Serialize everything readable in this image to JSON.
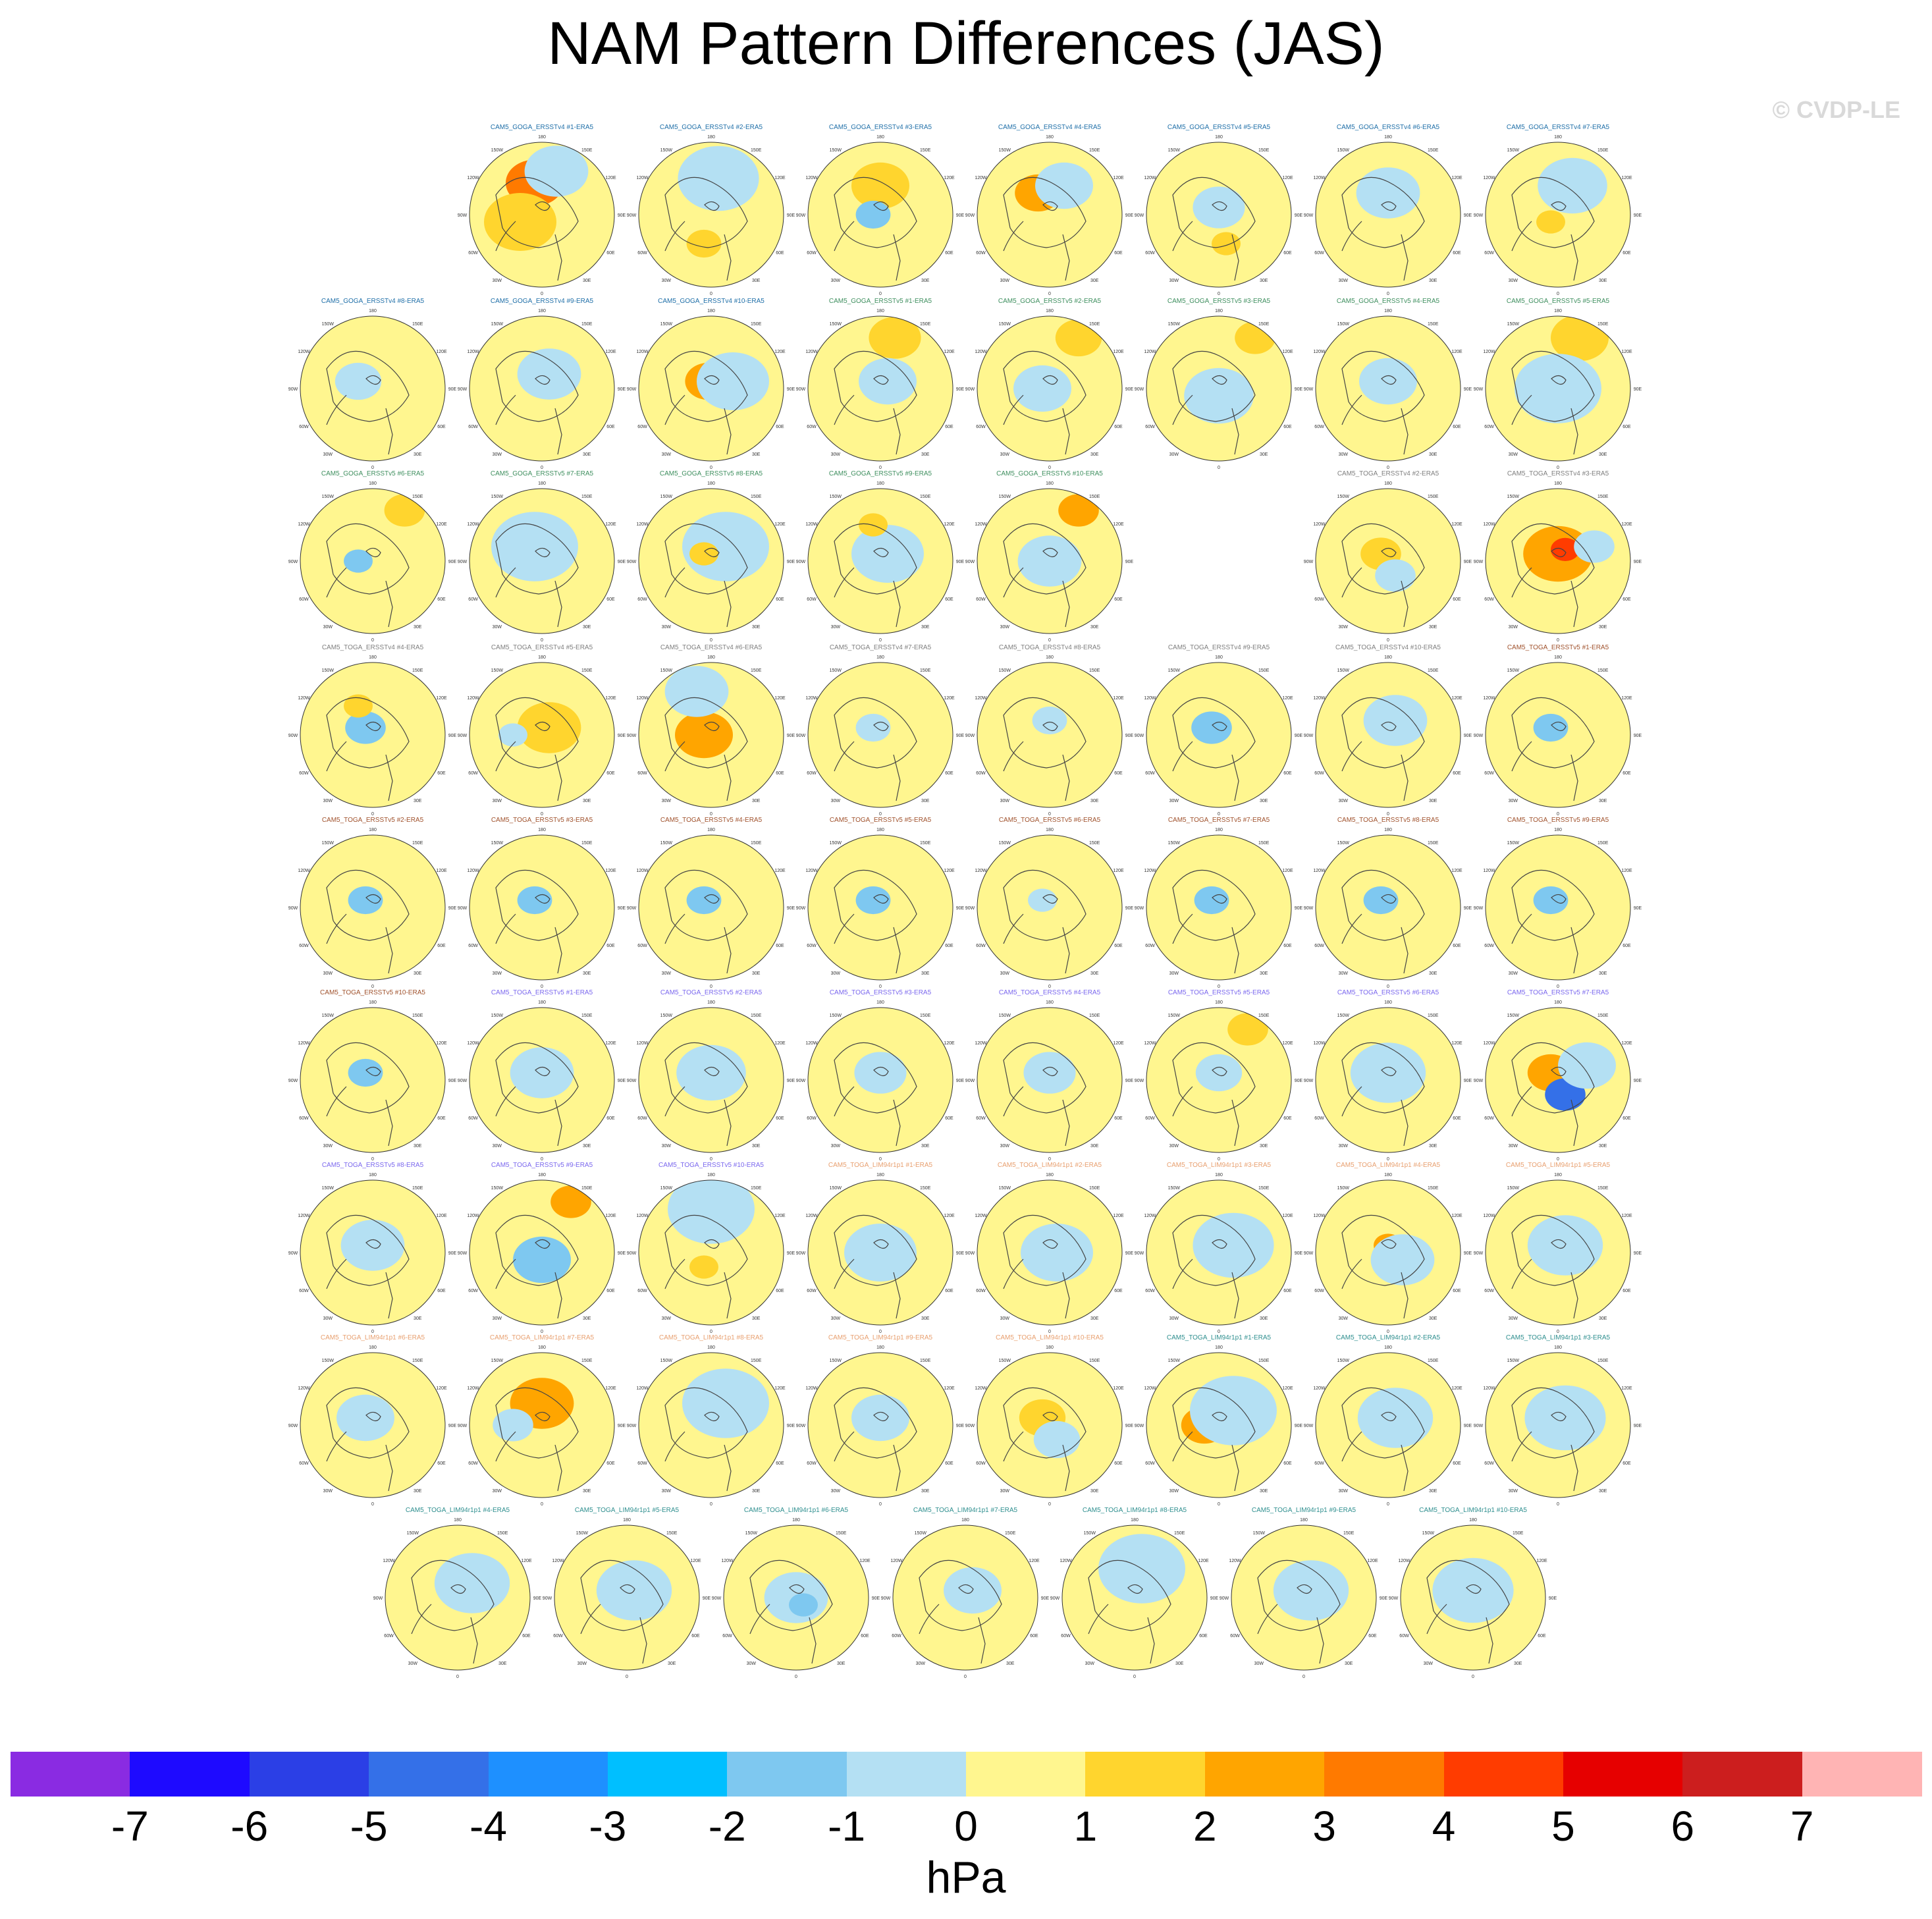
{
  "title": "NAM Pattern Differences (JAS)",
  "credit": "© CVDP-LE",
  "colorbar": {
    "units": "hPa",
    "ticks": [
      "-7",
      "-6",
      "-5",
      "-4",
      "-3",
      "-2",
      "-1",
      "0",
      "1",
      "2",
      "3",
      "4",
      "5",
      "6",
      "7"
    ],
    "colors": [
      "#8A2BE2",
      "#1E0AFF",
      "#2B3FE6",
      "#3470E8",
      "#1E90FF",
      "#00BFFF",
      "#7EC8F0",
      "#B4E0F3",
      "#FFF68F",
      "#FFD52E",
      "#FFA500",
      "#FF7A00",
      "#FF3C00",
      "#E60000",
      "#CC1E1E",
      "#FFB4B4"
    ]
  },
  "panel_template": {
    "lat_lon_labels": [
      "180",
      "150W",
      "150E",
      "120W",
      "120E",
      "90W",
      "90E",
      "60W",
      "60E",
      "30W",
      "30E",
      "0"
    ]
  },
  "panels": [
    {
      "title": "CAM5_GOGA_ERSSTv4 #1-ERA5",
      "color": "#1f6fa8",
      "blobs": [
        [
          0.45,
          0.28,
          0.2,
          "#FF7A00"
        ],
        [
          0.35,
          0.55,
          0.25,
          "#FFD52E"
        ],
        [
          0.6,
          0.2,
          0.22,
          "#B4E0F3"
        ]
      ]
    },
    {
      "title": "CAM5_GOGA_ERSSTv4 #2-ERA5",
      "color": "#1f6fa8",
      "blobs": [
        [
          0.55,
          0.25,
          0.28,
          "#B4E0F3"
        ],
        [
          0.45,
          0.7,
          0.12,
          "#FFD52E"
        ]
      ]
    },
    {
      "title": "CAM5_GOGA_ERSSTv4 #3-ERA5",
      "color": "#1f6fa8",
      "blobs": [
        [
          0.5,
          0.3,
          0.2,
          "#FFD52E"
        ],
        [
          0.45,
          0.5,
          0.12,
          "#7EC8F0"
        ]
      ]
    },
    {
      "title": "CAM5_GOGA_ERSSTv4 #4-ERA5",
      "color": "#1f6fa8",
      "blobs": [
        [
          0.42,
          0.35,
          0.16,
          "#FFA500"
        ],
        [
          0.6,
          0.3,
          0.2,
          "#B4E0F3"
        ]
      ]
    },
    {
      "title": "CAM5_GOGA_ERSSTv4 #5-ERA5",
      "color": "#1f6fa8",
      "blobs": [
        [
          0.5,
          0.45,
          0.18,
          "#B4E0F3"
        ],
        [
          0.55,
          0.7,
          0.1,
          "#FFD52E"
        ]
      ]
    },
    {
      "title": "CAM5_GOGA_ERSSTv4 #6-ERA5",
      "color": "#1f6fa8",
      "blobs": [
        [
          0.5,
          0.35,
          0.22,
          "#B4E0F3"
        ]
      ]
    },
    {
      "title": "CAM5_GOGA_ERSSTv4 #7-ERA5",
      "color": "#1f6fa8",
      "blobs": [
        [
          0.6,
          0.3,
          0.24,
          "#B4E0F3"
        ],
        [
          0.45,
          0.55,
          0.1,
          "#FFD52E"
        ]
      ]
    },
    {
      "title": "CAM5_GOGA_ERSSTv4 #8-ERA5",
      "color": "#1f6fa8",
      "blobs": [
        [
          0.4,
          0.45,
          0.16,
          "#B4E0F3"
        ]
      ]
    },
    {
      "title": "CAM5_GOGA_ERSSTv4 #9-ERA5",
      "color": "#1f6fa8",
      "blobs": [
        [
          0.55,
          0.4,
          0.22,
          "#B4E0F3"
        ]
      ]
    },
    {
      "title": "CAM5_GOGA_ERSSTv4 #10-ERA5",
      "color": "#1f6fa8",
      "blobs": [
        [
          0.48,
          0.45,
          0.16,
          "#FFA500"
        ],
        [
          0.65,
          0.45,
          0.25,
          "#B4E0F3"
        ]
      ]
    },
    {
      "title": "CAM5_GOGA_ERSSTv5 #1-ERA5",
      "color": "#3f8f5f",
      "blobs": [
        [
          0.6,
          0.15,
          0.18,
          "#FFD52E"
        ],
        [
          0.55,
          0.45,
          0.2,
          "#B4E0F3"
        ]
      ]
    },
    {
      "title": "CAM5_GOGA_ERSSTv5 #2-ERA5",
      "color": "#3f8f5f",
      "blobs": [
        [
          0.7,
          0.15,
          0.16,
          "#FFD52E"
        ],
        [
          0.45,
          0.5,
          0.2,
          "#B4E0F3"
        ]
      ]
    },
    {
      "title": "CAM5_GOGA_ERSSTv5 #3-ERA5",
      "color": "#3f8f5f",
      "blobs": [
        [
          0.75,
          0.15,
          0.14,
          "#FFD52E"
        ],
        [
          0.5,
          0.55,
          0.24,
          "#B4E0F3"
        ]
      ]
    },
    {
      "title": "CAM5_GOGA_ERSSTv5 #4-ERA5",
      "color": "#3f8f5f",
      "blobs": [
        [
          0.5,
          0.45,
          0.2,
          "#B4E0F3"
        ]
      ]
    },
    {
      "title": "CAM5_GOGA_ERSSTv5 #5-ERA5",
      "color": "#3f8f5f",
      "blobs": [
        [
          0.65,
          0.15,
          0.2,
          "#FFD52E"
        ],
        [
          0.5,
          0.5,
          0.3,
          "#B4E0F3"
        ]
      ]
    },
    {
      "title": "CAM5_GOGA_ERSSTv5 #6-ERA5",
      "color": "#3f8f5f",
      "blobs": [
        [
          0.72,
          0.15,
          0.14,
          "#FFD52E"
        ],
        [
          0.4,
          0.5,
          0.1,
          "#7EC8F0"
        ]
      ]
    },
    {
      "title": "CAM5_GOGA_ERSSTv5 #7-ERA5",
      "color": "#3f8f5f",
      "blobs": [
        [
          0.45,
          0.4,
          0.3,
          "#B4E0F3"
        ]
      ]
    },
    {
      "title": "CAM5_GOGA_ERSSTv5 #8-ERA5",
      "color": "#3f8f5f",
      "blobs": [
        [
          0.6,
          0.4,
          0.3,
          "#B4E0F3"
        ],
        [
          0.45,
          0.45,
          0.1,
          "#FFD52E"
        ]
      ]
    },
    {
      "title": "CAM5_GOGA_ERSSTv5 #9-ERA5",
      "color": "#3f8f5f",
      "blobs": [
        [
          0.55,
          0.45,
          0.25,
          "#B4E0F3"
        ],
        [
          0.45,
          0.25,
          0.1,
          "#FFD52E"
        ]
      ]
    },
    {
      "title": "CAM5_GOGA_ERSSTv5 #10-ERA5",
      "color": "#3f8f5f",
      "blobs": [
        [
          0.7,
          0.15,
          0.14,
          "#FFA500"
        ],
        [
          0.5,
          0.5,
          0.22,
          "#B4E0F3"
        ]
      ]
    },
    {
      "title": "CAM5_TOGA_ERSSTv4 #2-ERA5",
      "color": "#7f7f7f",
      "blobs": [
        [
          0.45,
          0.45,
          0.14,
          "#FFD52E"
        ],
        [
          0.55,
          0.6,
          0.14,
          "#B4E0F3"
        ]
      ]
    },
    {
      "title": "CAM5_TOGA_ERSSTv4 #3-ERA5",
      "color": "#7f7f7f",
      "blobs": [
        [
          0.5,
          0.45,
          0.24,
          "#FFA500"
        ],
        [
          0.55,
          0.42,
          0.1,
          "#FF3C00"
        ],
        [
          0.75,
          0.4,
          0.14,
          "#B4E0F3"
        ]
      ]
    },
    {
      "title": "CAM5_TOGA_ERSSTv4 #4-ERA5",
      "color": "#7f7f7f",
      "blobs": [
        [
          0.45,
          0.45,
          0.14,
          "#7EC8F0"
        ],
        [
          0.4,
          0.3,
          0.1,
          "#FFD52E"
        ]
      ]
    },
    {
      "title": "CAM5_TOGA_ERSSTv4 #5-ERA5",
      "color": "#7f7f7f",
      "blobs": [
        [
          0.55,
          0.45,
          0.22,
          "#FFD52E"
        ],
        [
          0.3,
          0.5,
          0.1,
          "#B4E0F3"
        ]
      ]
    },
    {
      "title": "CAM5_TOGA_ERSSTv4 #6-ERA5",
      "color": "#7f7f7f",
      "blobs": [
        [
          0.45,
          0.5,
          0.2,
          "#FFA500"
        ],
        [
          0.4,
          0.2,
          0.22,
          "#B4E0F3"
        ]
      ]
    },
    {
      "title": "CAM5_TOGA_ERSSTv4 #7-ERA5",
      "color": "#7f7f7f",
      "blobs": [
        [
          0.45,
          0.45,
          0.12,
          "#B4E0F3"
        ]
      ]
    },
    {
      "title": "CAM5_TOGA_ERSSTv4 #8-ERA5",
      "color": "#7f7f7f",
      "blobs": [
        [
          0.5,
          0.4,
          0.12,
          "#B4E0F3"
        ]
      ]
    },
    {
      "title": "CAM5_TOGA_ERSSTv4 #9-ERA5",
      "color": "#7f7f7f",
      "blobs": [
        [
          0.45,
          0.45,
          0.14,
          "#7EC8F0"
        ]
      ]
    },
    {
      "title": "CAM5_TOGA_ERSSTv4 #10-ERA5",
      "color": "#7f7f7f",
      "blobs": [
        [
          0.55,
          0.4,
          0.22,
          "#B4E0F3"
        ]
      ]
    },
    {
      "title": "CAM5_TOGA_ERSSTv5 #1-ERA5",
      "color": "#a0522d",
      "blobs": [
        [
          0.45,
          0.45,
          0.12,
          "#7EC8F0"
        ]
      ]
    },
    {
      "title": "CAM5_TOGA_ERSSTv5 #2-ERA5",
      "color": "#a0522d",
      "blobs": [
        [
          0.45,
          0.45,
          0.12,
          "#7EC8F0"
        ]
      ]
    },
    {
      "title": "CAM5_TOGA_ERSSTv5 #3-ERA5",
      "color": "#a0522d",
      "blobs": [
        [
          0.45,
          0.45,
          0.12,
          "#7EC8F0"
        ]
      ]
    },
    {
      "title": "CAM5_TOGA_ERSSTv5 #4-ERA5",
      "color": "#a0522d",
      "blobs": [
        [
          0.45,
          0.45,
          0.12,
          "#7EC8F0"
        ]
      ]
    },
    {
      "title": "CAM5_TOGA_ERSSTv5 #5-ERA5",
      "color": "#a0522d",
      "blobs": [
        [
          0.45,
          0.45,
          0.12,
          "#7EC8F0"
        ]
      ]
    },
    {
      "title": "CAM5_TOGA_ERSSTv5 #6-ERA5",
      "color": "#a0522d",
      "blobs": [
        [
          0.45,
          0.45,
          0.1,
          "#B4E0F3"
        ]
      ]
    },
    {
      "title": "CAM5_TOGA_ERSSTv5 #7-ERA5",
      "color": "#a0522d",
      "blobs": [
        [
          0.45,
          0.45,
          0.12,
          "#7EC8F0"
        ]
      ]
    },
    {
      "title": "CAM5_TOGA_ERSSTv5 #8-ERA5",
      "color": "#a0522d",
      "blobs": [
        [
          0.45,
          0.45,
          0.12,
          "#7EC8F0"
        ]
      ]
    },
    {
      "title": "CAM5_TOGA_ERSSTv5 #9-ERA5",
      "color": "#a0522d",
      "blobs": [
        [
          0.45,
          0.45,
          0.12,
          "#7EC8F0"
        ]
      ]
    },
    {
      "title": "CAM5_TOGA_ERSSTv5 #10-ERA5",
      "color": "#a0522d",
      "blobs": [
        [
          0.45,
          0.45,
          0.12,
          "#7EC8F0"
        ]
      ]
    },
    {
      "title": "CAM5_TOGA_ERSSTv5 #1-ERA5",
      "color": "#7b68ee",
      "blobs": [
        [
          0.5,
          0.45,
          0.22,
          "#B4E0F3"
        ]
      ]
    },
    {
      "title": "CAM5_TOGA_ERSSTv5 #2-ERA5",
      "color": "#7b68ee",
      "blobs": [
        [
          0.5,
          0.45,
          0.24,
          "#B4E0F3"
        ]
      ]
    },
    {
      "title": "CAM5_TOGA_ERSSTv5 #3-ERA5",
      "color": "#7b68ee",
      "blobs": [
        [
          0.5,
          0.45,
          0.18,
          "#B4E0F3"
        ]
      ]
    },
    {
      "title": "CAM5_TOGA_ERSSTv5 #4-ERA5",
      "color": "#7b68ee",
      "blobs": [
        [
          0.5,
          0.45,
          0.18,
          "#B4E0F3"
        ]
      ]
    },
    {
      "title": "CAM5_TOGA_ERSSTv5 #5-ERA5",
      "color": "#7b68ee",
      "blobs": [
        [
          0.7,
          0.15,
          0.14,
          "#FFD52E"
        ],
        [
          0.5,
          0.45,
          0.16,
          "#B4E0F3"
        ]
      ]
    },
    {
      "title": "CAM5_TOGA_ERSSTv5 #6-ERA5",
      "color": "#7b68ee",
      "blobs": [
        [
          0.5,
          0.45,
          0.26,
          "#B4E0F3"
        ]
      ]
    },
    {
      "title": "CAM5_TOGA_ERSSTv5 #7-ERA5",
      "color": "#7b68ee",
      "blobs": [
        [
          0.45,
          0.45,
          0.16,
          "#FFA500"
        ],
        [
          0.55,
          0.6,
          0.14,
          "#3470E8"
        ],
        [
          0.7,
          0.4,
          0.2,
          "#B4E0F3"
        ]
      ]
    },
    {
      "title": "CAM5_TOGA_ERSSTv5 #8-ERA5",
      "color": "#7b68ee",
      "blobs": [
        [
          0.5,
          0.45,
          0.22,
          "#B4E0F3"
        ]
      ]
    },
    {
      "title": "CAM5_TOGA_ERSSTv5 #9-ERA5",
      "color": "#7b68ee",
      "blobs": [
        [
          0.7,
          0.15,
          0.14,
          "#FFA500"
        ],
        [
          0.5,
          0.55,
          0.2,
          "#7EC8F0"
        ]
      ]
    },
    {
      "title": "CAM5_TOGA_ERSSTv5 #10-ERA5",
      "color": "#7b68ee",
      "blobs": [
        [
          0.5,
          0.2,
          0.3,
          "#B4E0F3"
        ],
        [
          0.45,
          0.6,
          0.1,
          "#FFD52E"
        ]
      ]
    },
    {
      "title": "CAM5_TOGA_LIM94r1p1 #1-ERA5",
      "color": "#e8a070",
      "blobs": [
        [
          0.5,
          0.5,
          0.25,
          "#B4E0F3"
        ]
      ]
    },
    {
      "title": "CAM5_TOGA_LIM94r1p1 #2-ERA5",
      "color": "#e8a070",
      "blobs": [
        [
          0.55,
          0.5,
          0.25,
          "#B4E0F3"
        ]
      ]
    },
    {
      "title": "CAM5_TOGA_LIM94r1p1 #3-ERA5",
      "color": "#e8a070",
      "blobs": [
        [
          0.6,
          0.45,
          0.28,
          "#B4E0F3"
        ]
      ]
    },
    {
      "title": "CAM5_TOGA_LIM94r1p1 #4-ERA5",
      "color": "#e8a070",
      "blobs": [
        [
          0.5,
          0.45,
          0.1,
          "#FFA500"
        ],
        [
          0.6,
          0.55,
          0.22,
          "#B4E0F3"
        ]
      ]
    },
    {
      "title": "CAM5_TOGA_LIM94r1p1 #5-ERA5",
      "color": "#e8a070",
      "blobs": [
        [
          0.55,
          0.45,
          0.26,
          "#B4E0F3"
        ]
      ]
    },
    {
      "title": "CAM5_TOGA_LIM94r1p1 #6-ERA5",
      "color": "#e8a070",
      "blobs": [
        [
          0.45,
          0.45,
          0.2,
          "#B4E0F3"
        ]
      ]
    },
    {
      "title": "CAM5_TOGA_LIM94r1p1 #7-ERA5",
      "color": "#e8a070",
      "blobs": [
        [
          0.5,
          0.35,
          0.22,
          "#FFA500"
        ],
        [
          0.3,
          0.5,
          0.14,
          "#B4E0F3"
        ]
      ]
    },
    {
      "title": "CAM5_TOGA_LIM94r1p1 #8-ERA5",
      "color": "#e8a070",
      "blobs": [
        [
          0.6,
          0.35,
          0.3,
          "#B4E0F3"
        ]
      ]
    },
    {
      "title": "CAM5_TOGA_LIM94r1p1 #9-ERA5",
      "color": "#e8a070",
      "blobs": [
        [
          0.5,
          0.45,
          0.2,
          "#B4E0F3"
        ]
      ]
    },
    {
      "title": "CAM5_TOGA_LIM94r1p1 #10-ERA5",
      "color": "#e8a070",
      "blobs": [
        [
          0.45,
          0.45,
          0.16,
          "#FFD52E"
        ],
        [
          0.55,
          0.6,
          0.16,
          "#B4E0F3"
        ]
      ]
    },
    {
      "title": "CAM5_TOGA_LIM94r1p1 #1-ERA5",
      "color": "#2f8f8f",
      "blobs": [
        [
          0.4,
          0.5,
          0.16,
          "#FFA500"
        ],
        [
          0.6,
          0.4,
          0.3,
          "#B4E0F3"
        ]
      ]
    },
    {
      "title": "CAM5_TOGA_LIM94r1p1 #2-ERA5",
      "color": "#2f8f8f",
      "blobs": [
        [
          0.55,
          0.45,
          0.26,
          "#B4E0F3"
        ]
      ]
    },
    {
      "title": "CAM5_TOGA_LIM94r1p1 #3-ERA5",
      "color": "#2f8f8f",
      "blobs": [
        [
          0.55,
          0.45,
          0.28,
          "#B4E0F3"
        ]
      ]
    },
    {
      "title": "CAM5_TOGA_LIM94r1p1 #4-ERA5",
      "color": "#2f8f8f",
      "blobs": [
        [
          0.6,
          0.4,
          0.26,
          "#B4E0F3"
        ]
      ]
    },
    {
      "title": "CAM5_TOGA_LIM94r1p1 #5-ERA5",
      "color": "#2f8f8f",
      "blobs": [
        [
          0.55,
          0.45,
          0.26,
          "#B4E0F3"
        ]
      ]
    },
    {
      "title": "CAM5_TOGA_LIM94r1p1 #6-ERA5",
      "color": "#2f8f8f",
      "blobs": [
        [
          0.5,
          0.5,
          0.22,
          "#B4E0F3"
        ],
        [
          0.55,
          0.55,
          0.1,
          "#7EC8F0"
        ]
      ]
    },
    {
      "title": "CAM5_TOGA_LIM94r1p1 #7-ERA5",
      "color": "#2f8f8f",
      "blobs": [
        [
          0.55,
          0.45,
          0.2,
          "#B4E0F3"
        ]
      ]
    },
    {
      "title": "CAM5_TOGA_LIM94r1p1 #8-ERA5",
      "color": "#2f8f8f",
      "blobs": [
        [
          0.55,
          0.3,
          0.3,
          "#B4E0F3"
        ]
      ]
    },
    {
      "title": "CAM5_TOGA_LIM94r1p1 #9-ERA5",
      "color": "#2f8f8f",
      "blobs": [
        [
          0.55,
          0.45,
          0.26,
          "#B4E0F3"
        ]
      ]
    },
    {
      "title": "CAM5_TOGA_LIM94r1p1 #10-ERA5",
      "color": "#2f8f8f",
      "blobs": [
        [
          0.5,
          0.45,
          0.28,
          "#B4E0F3"
        ]
      ]
    }
  ],
  "chart_data": {
    "type": "heatmap",
    "title": "NAM Pattern Differences (JAS)",
    "colorbar_units": "hPa",
    "colorbar_ticks": [
      -7,
      -6,
      -5,
      -4,
      -3,
      -2,
      -1,
      0,
      1,
      2,
      3,
      4,
      5,
      6,
      7
    ],
    "panel_count": 70
  }
}
